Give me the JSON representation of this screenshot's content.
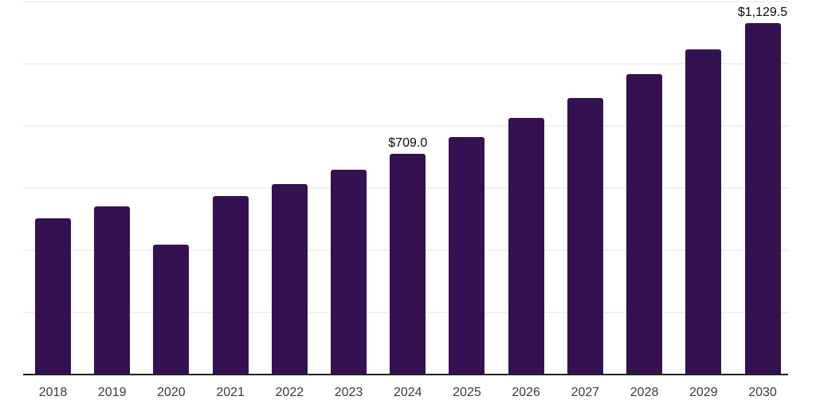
{
  "chart_data": {
    "type": "bar",
    "title": "",
    "xlabel": "",
    "ylabel": "",
    "categories": [
      "2018",
      "2019",
      "2020",
      "2021",
      "2022",
      "2023",
      "2024",
      "2025",
      "2026",
      "2027",
      "2028",
      "2029",
      "2030"
    ],
    "values": [
      503,
      541,
      419,
      574,
      613,
      659,
      709.0,
      765,
      825,
      891,
      966,
      1047,
      1129.5
    ],
    "ylim": [
      0,
      1200
    ],
    "gridline_values": [
      200,
      400,
      600,
      800,
      1000,
      1200
    ],
    "grid": "horizontal-only",
    "legend_position": "none",
    "y_axis_labels_visible": false,
    "data_labels": [
      {
        "index": 6,
        "text": "$709.0"
      },
      {
        "index": 12,
        "text": "$1,129.5"
      }
    ],
    "colors": {
      "bar": "#341150",
      "gridline": "#f2f2f2",
      "axis_line": "#212121",
      "tick_label": "#3b3b3b",
      "data_label": "#0a0a0a",
      "background": "#ffffff"
    }
  }
}
